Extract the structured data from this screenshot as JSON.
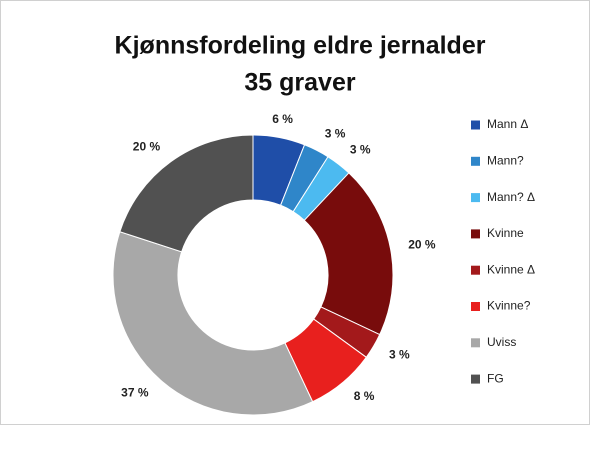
{
  "chart_data": {
    "type": "donut",
    "title": "Kjønnsfordeling eldre jernalder",
    "subtitle": "35 graver",
    "categories": [
      "Mann Δ",
      "Mann?",
      "Mann? Δ",
      "Kvinne",
      "Kvinne Δ",
      "Kvinne?",
      "Uviss",
      "FG"
    ],
    "values": [
      6,
      3,
      3,
      20,
      3,
      8,
      37,
      20
    ],
    "value_labels": [
      "6 %",
      "3 %",
      "3 %",
      "20 %",
      "3 %",
      "8 %",
      "37 %",
      "20 %"
    ],
    "colors": [
      "#1f4ea8",
      "#2f86c9",
      "#4cbaf0",
      "#780c0c",
      "#a3191b",
      "#e8201e",
      "#a8a8a8",
      "#515151"
    ],
    "legend": "right"
  }
}
